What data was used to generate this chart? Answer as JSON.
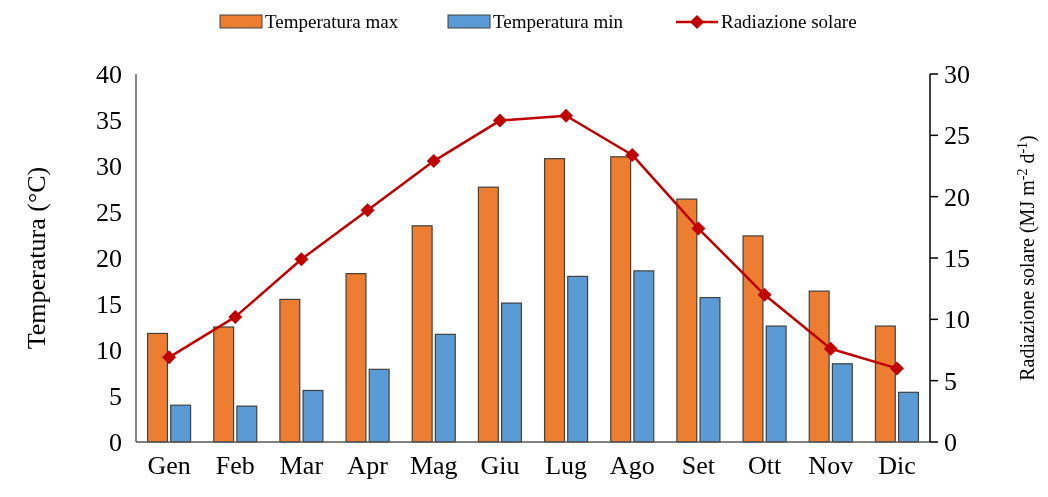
{
  "chart_data": {
    "type": "bar",
    "categories": [
      "Gen",
      "Feb",
      "Mar",
      "Apr",
      "Mag",
      "Giu",
      "Lug",
      "Ago",
      "Set",
      "Ott",
      "Nov",
      "Dic"
    ],
    "series": [
      {
        "name": "Temperatura max",
        "color": "#ed7d31",
        "values": [
          11.8,
          12.5,
          15.5,
          18.3,
          23.5,
          27.7,
          30.8,
          31.0,
          26.4,
          22.4,
          16.4,
          12.6
        ]
      },
      {
        "name": "Temperatura min",
        "color": "#5b9bd5",
        "values": [
          4.0,
          3.9,
          5.6,
          7.9,
          11.7,
          15.1,
          18.0,
          18.6,
          15.7,
          12.6,
          8.5,
          5.4
        ]
      },
      {
        "name": "Radiazione solare",
        "type": "line",
        "axis": "y2",
        "color": "#c00000",
        "marker": "diamond",
        "values": [
          6.9,
          10.2,
          14.9,
          18.9,
          22.9,
          26.2,
          26.6,
          23.4,
          17.4,
          12.0,
          7.6,
          6.0
        ]
      }
    ],
    "ylabel": "Temperatura (°C)",
    "y2label": "Radiazione solare (MJ m$^{-2}$ d$^{-1}$)",
    "ylim": [
      0,
      40
    ],
    "yticks": [
      0,
      5,
      10,
      15,
      20,
      25,
      30,
      35,
      40
    ],
    "y2lim": [
      0,
      30
    ],
    "y2ticks": [
      0,
      5,
      10,
      15,
      20,
      25,
      30
    ],
    "legend": "top",
    "grid": false
  }
}
